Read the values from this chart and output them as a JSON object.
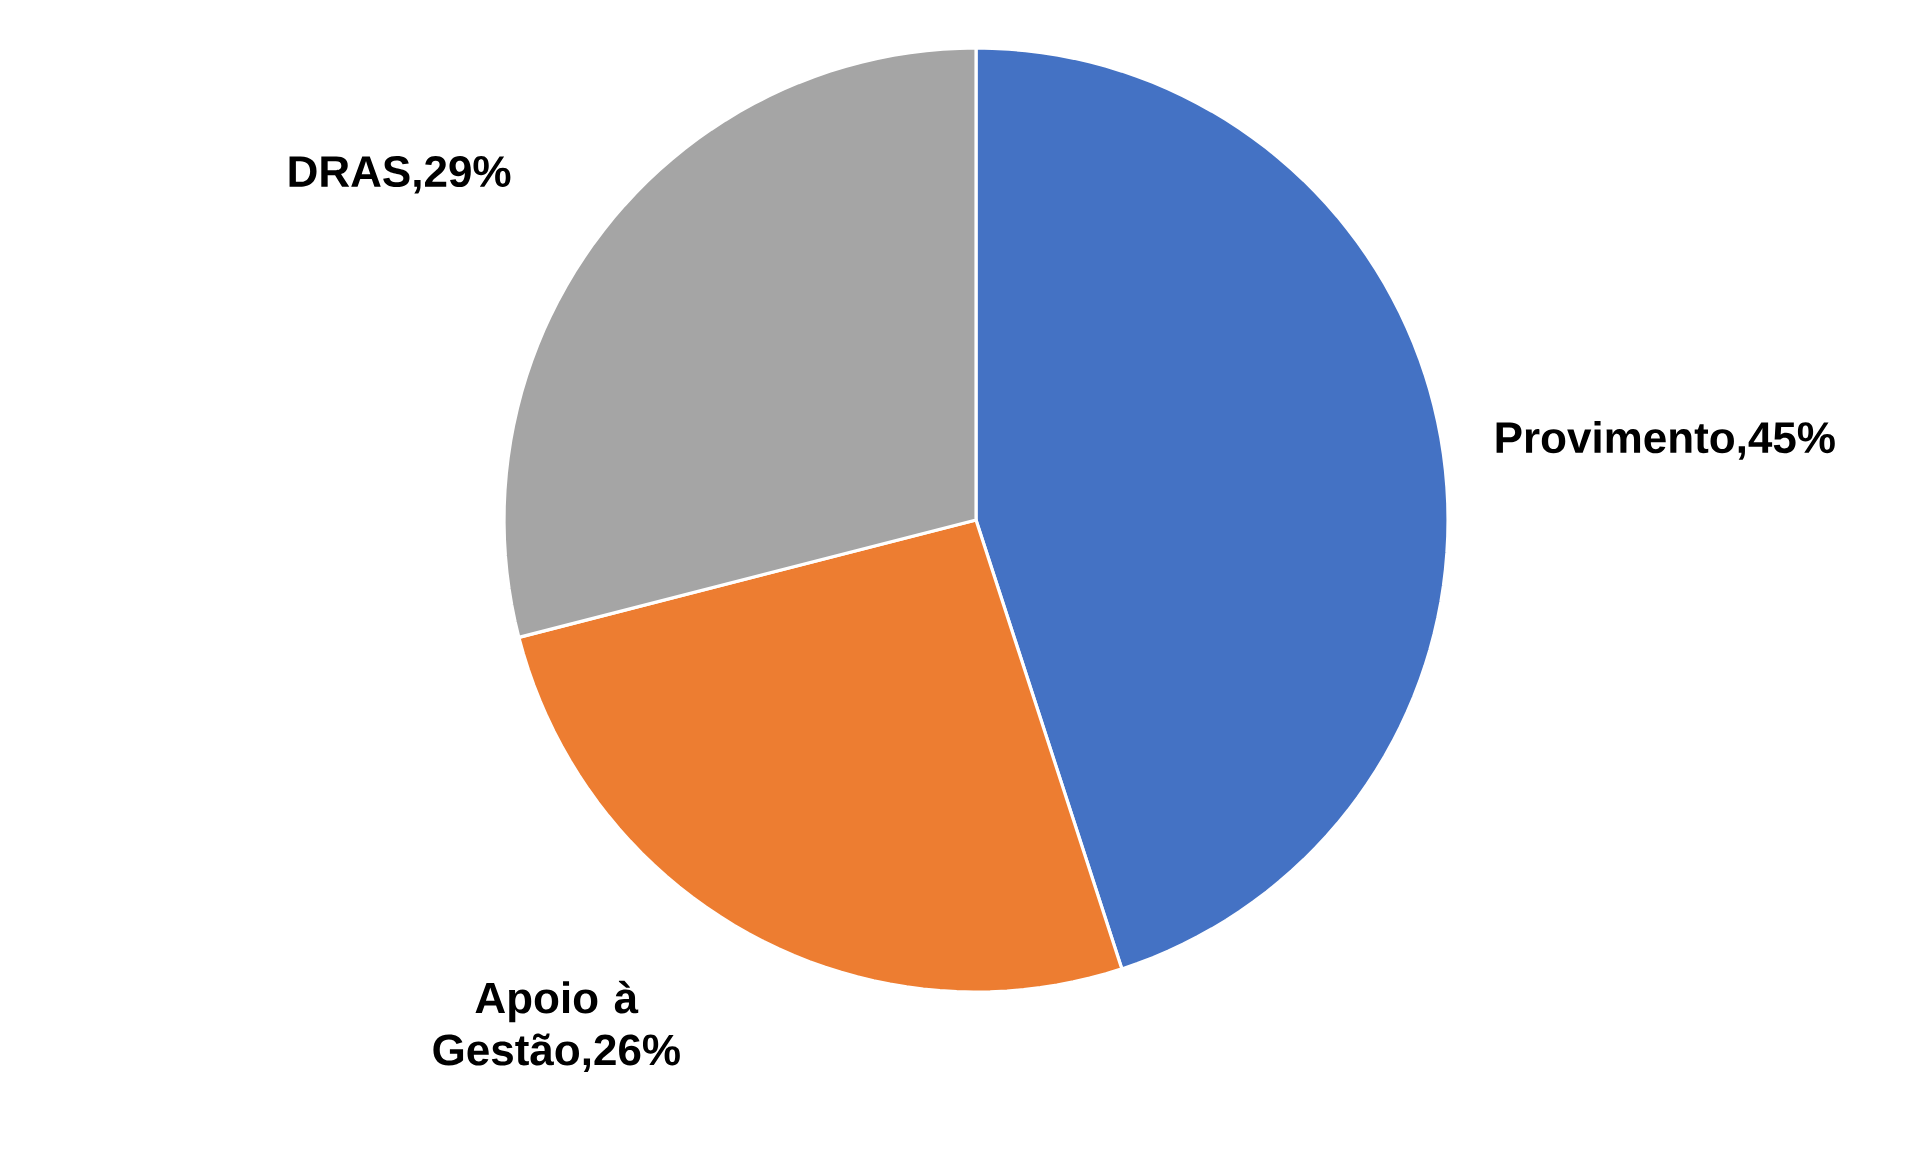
{
  "chart_data": {
    "type": "pie",
    "categories": [
      "Provimento",
      "Apoio à Gestão",
      "DRAS"
    ],
    "values": [
      45,
      26,
      29
    ],
    "value_labels": [
      ",45%",
      ",26%",
      ",29%"
    ],
    "colors": [
      "#4472c4",
      "#ed7d31",
      "#a5a5a5"
    ]
  }
}
